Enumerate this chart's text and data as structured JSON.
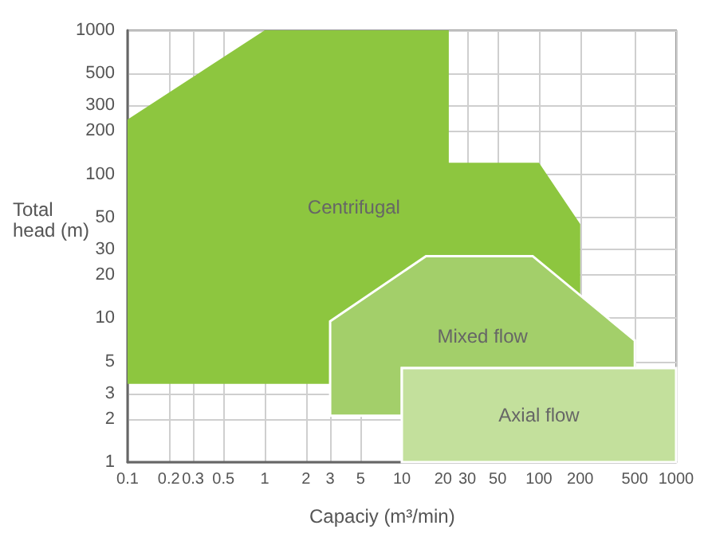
{
  "chart_data": {
    "type": "area",
    "xlabel": "Capaciy (m³/min)",
    "ylabel": "Total head (m)",
    "xlim": [
      0.1,
      1000
    ],
    "xticks": [
      0.1,
      0.2,
      0.3,
      0.5,
      1,
      2,
      3,
      5,
      10,
      20,
      30,
      50,
      100,
      200,
      500,
      1000
    ],
    "ylim": [
      1,
      1000
    ],
    "yticks": [
      1,
      2,
      3,
      5,
      10,
      20,
      30,
      50,
      100,
      200,
      300,
      500,
      1000
    ],
    "grid": true,
    "legend": false,
    "log": "xy",
    "series": [
      {
        "name": "Centrifugal",
        "color": "#8dc63f",
        "x": [
          0.1,
          1,
          22,
          22,
          100,
          200,
          200,
          90,
          15,
          3,
          3,
          0.1
        ],
        "values": [
          240,
          1000,
          1000,
          120,
          120,
          45,
          14,
          27,
          27,
          9.5,
          3.5,
          3.5
        ]
      },
      {
        "name": "Mixed flow",
        "color": "#a3cf6a",
        "x": [
          3,
          15,
          90,
          500,
          500,
          10,
          10,
          3
        ],
        "values": [
          9.5,
          27,
          27,
          7,
          4.5,
          4.5,
          2.1,
          2.1
        ]
      },
      {
        "name": "Axial flow",
        "color": "#c3e09c",
        "x": [
          10,
          1000,
          1000,
          10
        ],
        "values": [
          4.5,
          4.5,
          1,
          1
        ]
      }
    ]
  }
}
